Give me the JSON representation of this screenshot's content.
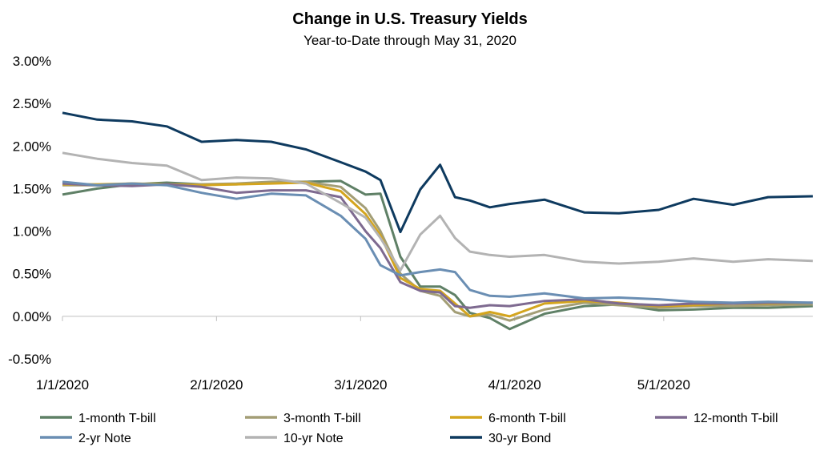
{
  "chart_data": {
    "type": "line",
    "title": "Change in U.S. Treasury Yields",
    "subtitle": "Year-to-Date through May 31, 2020",
    "xlabel": "",
    "ylabel": "",
    "ylim": [
      -0.5,
      3.0
    ],
    "yticks": [
      "3.00%",
      "2.50%",
      "2.00%",
      "1.50%",
      "1.00%",
      "0.50%",
      "0.00%",
      "-0.50%"
    ],
    "yticks_values": [
      3.0,
      2.5,
      2.0,
      1.5,
      1.0,
      0.5,
      0.0,
      -0.5
    ],
    "xlim": [
      "2020-01-01",
      "2020-05-31"
    ],
    "xticks": [
      "1/1/2020",
      "2/1/2020",
      "3/1/2020",
      "4/1/2020",
      "5/1/2020"
    ],
    "xticks_dates": [
      "2020-01-01",
      "2020-02-01",
      "2020-03-01",
      "2020-04-01",
      "2020-05-01"
    ],
    "grid": false,
    "legend_position": "bottom",
    "series": [
      {
        "name": "1-month T-bill",
        "color": "#5f8066",
        "x": [
          "2020-01-01",
          "2020-01-08",
          "2020-01-15",
          "2020-01-22",
          "2020-01-29",
          "2020-02-05",
          "2020-02-12",
          "2020-02-19",
          "2020-02-26",
          "2020-03-02",
          "2020-03-05",
          "2020-03-09",
          "2020-03-13",
          "2020-03-17",
          "2020-03-20",
          "2020-03-23",
          "2020-03-27",
          "2020-03-31",
          "2020-04-07",
          "2020-04-15",
          "2020-04-22",
          "2020-04-30",
          "2020-05-07",
          "2020-05-15",
          "2020-05-22",
          "2020-05-31"
        ],
        "values": [
          1.43,
          1.5,
          1.55,
          1.57,
          1.55,
          1.55,
          1.57,
          1.58,
          1.59,
          1.43,
          1.44,
          0.7,
          0.35,
          0.35,
          0.25,
          0.04,
          -0.02,
          -0.15,
          0.03,
          0.12,
          0.14,
          0.07,
          0.08,
          0.1,
          0.1,
          0.12
        ]
      },
      {
        "name": "3-month T-bill",
        "color": "#a39e76",
        "x": [
          "2020-01-01",
          "2020-01-08",
          "2020-01-15",
          "2020-01-22",
          "2020-01-29",
          "2020-02-05",
          "2020-02-12",
          "2020-02-19",
          "2020-02-26",
          "2020-03-02",
          "2020-03-05",
          "2020-03-09",
          "2020-03-13",
          "2020-03-17",
          "2020-03-20",
          "2020-03-23",
          "2020-03-27",
          "2020-03-31",
          "2020-04-07",
          "2020-04-15",
          "2020-04-22",
          "2020-04-30",
          "2020-05-07",
          "2020-05-15",
          "2020-05-22",
          "2020-05-31"
        ],
        "values": [
          1.54,
          1.54,
          1.56,
          1.55,
          1.55,
          1.56,
          1.58,
          1.58,
          1.52,
          1.27,
          1.0,
          0.5,
          0.3,
          0.24,
          0.05,
          0.0,
          0.02,
          -0.05,
          0.08,
          0.16,
          0.13,
          0.1,
          0.12,
          0.12,
          0.13,
          0.14
        ]
      },
      {
        "name": "6-month T-bill",
        "color": "#d4a51e",
        "x": [
          "2020-01-01",
          "2020-01-08",
          "2020-01-15",
          "2020-01-22",
          "2020-01-29",
          "2020-02-05",
          "2020-02-12",
          "2020-02-19",
          "2020-02-26",
          "2020-03-02",
          "2020-03-05",
          "2020-03-09",
          "2020-03-13",
          "2020-03-17",
          "2020-03-20",
          "2020-03-23",
          "2020-03-27",
          "2020-03-31",
          "2020-04-07",
          "2020-04-15",
          "2020-04-22",
          "2020-04-30",
          "2020-05-07",
          "2020-05-15",
          "2020-05-22",
          "2020-05-31"
        ],
        "values": [
          1.55,
          1.55,
          1.56,
          1.55,
          1.54,
          1.55,
          1.56,
          1.57,
          1.47,
          1.2,
          0.95,
          0.45,
          0.32,
          0.3,
          0.15,
          0.0,
          0.05,
          0.0,
          0.15,
          0.18,
          0.16,
          0.12,
          0.13,
          0.15,
          0.15,
          0.16
        ]
      },
      {
        "name": "12-month T-bill",
        "color": "#7e6a90",
        "x": [
          "2020-01-01",
          "2020-01-08",
          "2020-01-15",
          "2020-01-22",
          "2020-01-29",
          "2020-02-05",
          "2020-02-12",
          "2020-02-19",
          "2020-02-26",
          "2020-03-02",
          "2020-03-05",
          "2020-03-09",
          "2020-03-13",
          "2020-03-17",
          "2020-03-20",
          "2020-03-23",
          "2020-03-27",
          "2020-03-31",
          "2020-04-07",
          "2020-04-15",
          "2020-04-22",
          "2020-04-30",
          "2020-05-07",
          "2020-05-15",
          "2020-05-22",
          "2020-05-31"
        ],
        "values": [
          1.56,
          1.54,
          1.53,
          1.55,
          1.52,
          1.45,
          1.48,
          1.48,
          1.4,
          1.0,
          0.8,
          0.4,
          0.3,
          0.28,
          0.12,
          0.1,
          0.13,
          0.12,
          0.18,
          0.2,
          0.15,
          0.13,
          0.15,
          0.15,
          0.16,
          0.16
        ]
      },
      {
        "name": "2-yr Note",
        "color": "#6a8eb3",
        "x": [
          "2020-01-01",
          "2020-01-08",
          "2020-01-15",
          "2020-01-22",
          "2020-01-29",
          "2020-02-05",
          "2020-02-12",
          "2020-02-19",
          "2020-02-26",
          "2020-03-02",
          "2020-03-05",
          "2020-03-09",
          "2020-03-13",
          "2020-03-17",
          "2020-03-20",
          "2020-03-23",
          "2020-03-27",
          "2020-03-31",
          "2020-04-07",
          "2020-04-15",
          "2020-04-22",
          "2020-04-30",
          "2020-05-07",
          "2020-05-15",
          "2020-05-22",
          "2020-05-31"
        ],
        "values": [
          1.58,
          1.54,
          1.56,
          1.54,
          1.45,
          1.38,
          1.44,
          1.42,
          1.18,
          0.91,
          0.6,
          0.48,
          0.52,
          0.55,
          0.52,
          0.31,
          0.24,
          0.23,
          0.27,
          0.21,
          0.22,
          0.2,
          0.17,
          0.16,
          0.17,
          0.16
        ]
      },
      {
        "name": "10-yr Note",
        "color": "#b3b3b3",
        "x": [
          "2020-01-01",
          "2020-01-08",
          "2020-01-15",
          "2020-01-22",
          "2020-01-29",
          "2020-02-05",
          "2020-02-12",
          "2020-02-19",
          "2020-02-26",
          "2020-03-02",
          "2020-03-05",
          "2020-03-09",
          "2020-03-13",
          "2020-03-17",
          "2020-03-20",
          "2020-03-23",
          "2020-03-27",
          "2020-03-31",
          "2020-04-07",
          "2020-04-15",
          "2020-04-22",
          "2020-04-30",
          "2020-05-07",
          "2020-05-15",
          "2020-05-22",
          "2020-05-31"
        ],
        "values": [
          1.92,
          1.85,
          1.8,
          1.77,
          1.6,
          1.63,
          1.62,
          1.56,
          1.33,
          1.16,
          0.92,
          0.54,
          0.96,
          1.18,
          0.92,
          0.76,
          0.72,
          0.7,
          0.72,
          0.64,
          0.62,
          0.64,
          0.68,
          0.64,
          0.67,
          0.65
        ]
      },
      {
        "name": "30-yr Bond",
        "color": "#0e3a5f",
        "x": [
          "2020-01-01",
          "2020-01-08",
          "2020-01-15",
          "2020-01-22",
          "2020-01-29",
          "2020-02-05",
          "2020-02-12",
          "2020-02-19",
          "2020-02-26",
          "2020-03-02",
          "2020-03-05",
          "2020-03-09",
          "2020-03-13",
          "2020-03-17",
          "2020-03-20",
          "2020-03-23",
          "2020-03-27",
          "2020-03-31",
          "2020-04-07",
          "2020-04-15",
          "2020-04-22",
          "2020-04-30",
          "2020-05-07",
          "2020-05-15",
          "2020-05-22",
          "2020-05-31"
        ],
        "values": [
          2.39,
          2.31,
          2.29,
          2.23,
          2.05,
          2.07,
          2.05,
          1.96,
          1.81,
          1.7,
          1.6,
          0.99,
          1.49,
          1.78,
          1.4,
          1.36,
          1.28,
          1.32,
          1.37,
          1.22,
          1.21,
          1.25,
          1.38,
          1.31,
          1.4,
          1.41
        ]
      }
    ]
  }
}
